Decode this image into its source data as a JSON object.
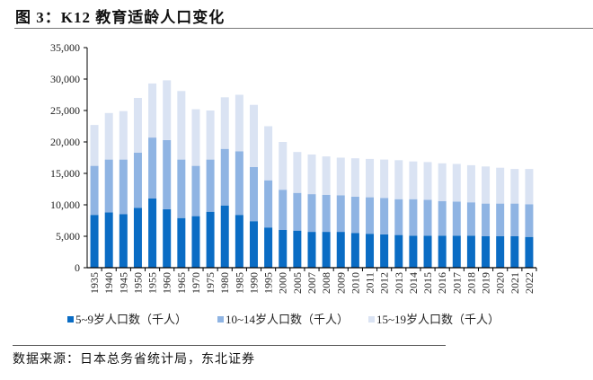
{
  "title": "图 3：K12 教育适龄人口变化",
  "source": "数据来源：日本总务省统计局，东北证券",
  "chart_data": {
    "type": "bar",
    "stacked": true,
    "title": "",
    "xlabel": "",
    "ylabel": "",
    "ylim": [
      0,
      35000
    ],
    "yticks": [
      "0",
      "5,000",
      "10,000",
      "15,000",
      "20,000",
      "25,000",
      "30,000",
      "35,000"
    ],
    "grid": false,
    "legend_position": "bottom",
    "categories": [
      "1935",
      "1940",
      "1945",
      "1950",
      "1955",
      "1960",
      "1965",
      "1970",
      "1975",
      "1980",
      "1985",
      "1990",
      "1995",
      "2000",
      "2005",
      "2007",
      "2008",
      "2009",
      "2010",
      "2011",
      "2012",
      "2013",
      "2014",
      "2015",
      "2016",
      "2017",
      "2018",
      "2019",
      "2020",
      "2021",
      "2022"
    ],
    "series": [
      {
        "name": "5~9岁人口数（千人）",
        "color": "#0a6cc4",
        "values": [
          8400,
          8800,
          8500,
          9500,
          11000,
          9300,
          7900,
          8200,
          8900,
          9900,
          8400,
          7400,
          6400,
          6000,
          5900,
          5700,
          5700,
          5700,
          5500,
          5400,
          5300,
          5200,
          5100,
          5100,
          5100,
          5100,
          5100,
          5000,
          5000,
          5000,
          4900
        ]
      },
      {
        "name": "10~14岁人口数（千人）",
        "color": "#8fb4e3",
        "values": [
          7800,
          8400,
          8700,
          8800,
          9700,
          11000,
          9300,
          8000,
          8300,
          9000,
          10100,
          8600,
          7500,
          6400,
          6000,
          6000,
          5900,
          5800,
          5800,
          5800,
          5800,
          5700,
          5800,
          5700,
          5500,
          5400,
          5300,
          5200,
          5200,
          5200,
          5200
        ]
      },
      {
        "name": "15~19岁人口数（千人）",
        "color": "#dae3f3",
        "values": [
          6500,
          7400,
          7700,
          8700,
          8600,
          9500,
          10900,
          9000,
          7800,
          8200,
          9000,
          9900,
          8600,
          7600,
          6500,
          6300,
          6100,
          6000,
          6100,
          6100,
          6100,
          6200,
          6000,
          6000,
          6000,
          6000,
          5900,
          5900,
          5700,
          5500,
          5600
        ]
      }
    ]
  }
}
